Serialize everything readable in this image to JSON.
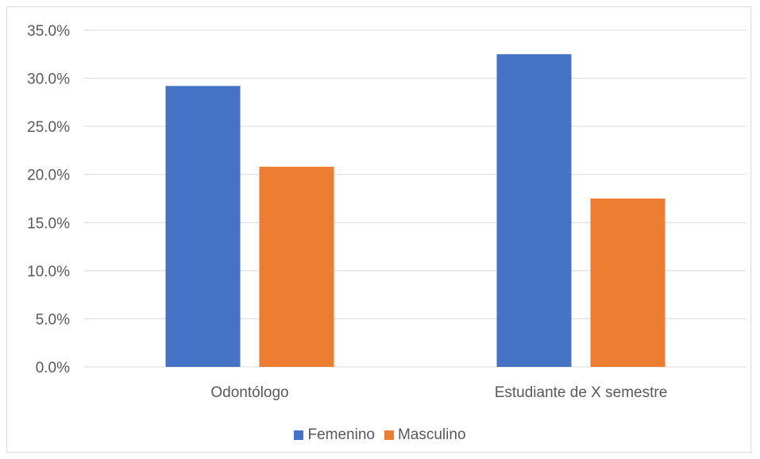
{
  "chart_data": {
    "type": "bar",
    "categories": [
      "Odontólogo",
      "Estudiante de X semestre"
    ],
    "series": [
      {
        "name": "Femenino",
        "values": [
          29.2,
          32.5
        ],
        "color": "#4472c4"
      },
      {
        "name": "Masculino",
        "values": [
          20.8,
          17.5
        ],
        "color": "#ed7d31"
      }
    ],
    "ylim": [
      0,
      35
    ],
    "yticks": [
      "0.0%",
      "5.0%",
      "10.0%",
      "15.0%",
      "20.0%",
      "25.0%",
      "30.0%",
      "35.0%"
    ],
    "grid": true,
    "legend": "bottom"
  }
}
